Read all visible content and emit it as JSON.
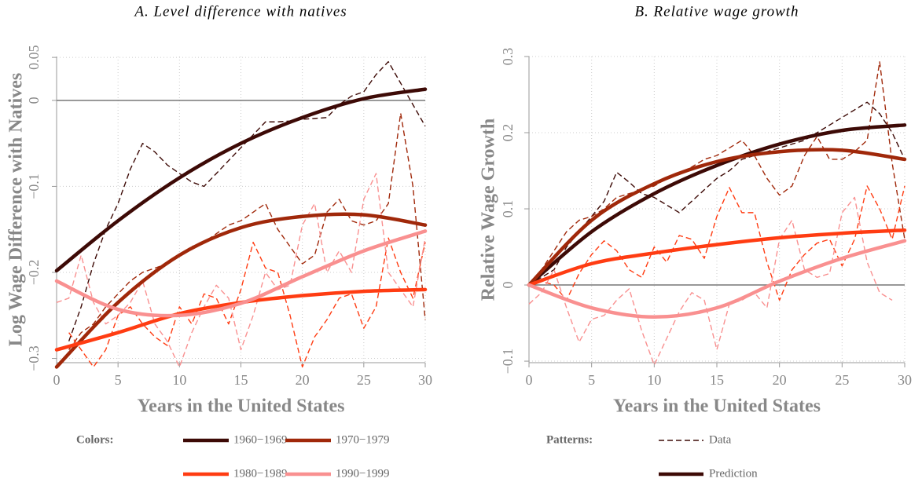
{
  "chart_data": [
    {
      "type": "line",
      "title": "A. Level difference with natives",
      "xlabel": "Years in the United States",
      "ylabel": "Log Wage Difference with Natives",
      "x": [
        0,
        1,
        2,
        3,
        4,
        5,
        6,
        7,
        8,
        9,
        10,
        11,
        12,
        13,
        14,
        15,
        16,
        17,
        18,
        19,
        20,
        21,
        22,
        23,
        24,
        25,
        26,
        27,
        28,
        29,
        30
      ],
      "xlim": [
        0,
        30
      ],
      "xticks": [
        0,
        5,
        10,
        15,
        20,
        25,
        30
      ],
      "ylim": [
        -0.305,
        0.051
      ],
      "yticks": [
        {
          "value": -0.3,
          "label": "−0.3"
        },
        {
          "value": -0.2,
          "label": "−0.2"
        },
        {
          "value": -0.1,
          "label": "−0.1"
        },
        0,
        0.05
      ],
      "grid": true,
      "hline": 0,
      "series": [
        {
          "name": "1960−1969",
          "pattern": "dashed",
          "color": "#3d0a06",
          "values": [
            null,
            -0.28,
            -0.24,
            -0.19,
            -0.15,
            -0.12,
            -0.08,
            -0.05,
            -0.06,
            -0.075,
            -0.085,
            -0.095,
            -0.1,
            -0.085,
            -0.07,
            -0.055,
            -0.04,
            -0.025,
            -0.025,
            -0.024,
            -0.022,
            -0.021,
            -0.02,
            -0.005,
            0.005,
            0.01,
            0.03,
            0.045,
            0.02,
            -0.005,
            -0.03
          ]
        },
        {
          "name": "1970−1979",
          "pattern": "dashed",
          "color": "#a0280a",
          "values": [
            null,
            -0.29,
            -0.27,
            -0.26,
            -0.24,
            -0.225,
            -0.21,
            -0.2,
            -0.195,
            -0.19,
            -0.18,
            -0.17,
            -0.165,
            -0.155,
            -0.145,
            -0.14,
            -0.13,
            -0.12,
            -0.15,
            -0.17,
            -0.19,
            -0.18,
            -0.13,
            -0.115,
            -0.14,
            -0.145,
            -0.14,
            -0.12,
            -0.015,
            -0.1,
            -0.255
          ]
        },
        {
          "name": "1980−1989",
          "pattern": "dashed",
          "color": "#ff3c12",
          "values": [
            null,
            -0.27,
            -0.29,
            -0.31,
            -0.29,
            -0.25,
            -0.24,
            -0.26,
            -0.275,
            -0.285,
            -0.24,
            -0.26,
            -0.225,
            -0.23,
            -0.26,
            -0.22,
            -0.165,
            -0.195,
            -0.2,
            -0.25,
            -0.31,
            -0.275,
            -0.255,
            -0.23,
            -0.225,
            -0.265,
            -0.24,
            -0.16,
            -0.2,
            -0.23,
            -0.165
          ]
        },
        {
          "name": "1990−1999",
          "pattern": "dashed",
          "color": "#f99090",
          "values": [
            -0.235,
            -0.23,
            -0.18,
            -0.235,
            -0.26,
            -0.25,
            -0.235,
            -0.21,
            -0.26,
            -0.28,
            -0.31,
            -0.27,
            -0.24,
            -0.215,
            -0.23,
            -0.29,
            -0.25,
            -0.2,
            -0.22,
            -0.215,
            -0.145,
            -0.12,
            -0.2,
            -0.175,
            -0.2,
            -0.115,
            -0.085,
            -0.2,
            -0.22,
            -0.24,
            -0.16
          ]
        },
        {
          "name": "1960−1969",
          "pattern": "solid",
          "color": "#3d0a06",
          "x": [
            0,
            5,
            10,
            15,
            20,
            25,
            30
          ],
          "values": [
            -0.198,
            -0.14,
            -0.09,
            -0.05,
            -0.02,
            0.002,
            0.013
          ]
        },
        {
          "name": "1970−1979",
          "pattern": "solid",
          "color": "#a0280a",
          "x": [
            0,
            5,
            10,
            15,
            20,
            25,
            30
          ],
          "values": [
            -0.31,
            -0.235,
            -0.18,
            -0.148,
            -0.135,
            -0.133,
            -0.145
          ]
        },
        {
          "name": "1980−1989",
          "pattern": "solid",
          "color": "#ff3c12",
          "x": [
            0,
            5,
            10,
            15,
            20,
            25,
            30
          ],
          "values": [
            -0.29,
            -0.27,
            -0.248,
            -0.235,
            -0.227,
            -0.222,
            -0.22
          ]
        },
        {
          "name": "1990−1999",
          "pattern": "solid",
          "color": "#f99090",
          "x": [
            0,
            5,
            10,
            15,
            20,
            25,
            30
          ],
          "values": [
            -0.21,
            -0.243,
            -0.25,
            -0.236,
            -0.205,
            -0.175,
            -0.152
          ]
        }
      ]
    },
    {
      "type": "line",
      "title": "B. Relative wage growth",
      "xlabel": "Years in the United States",
      "ylabel": "Relative Wage Growth",
      "x": [
        0,
        1,
        2,
        3,
        4,
        5,
        6,
        7,
        8,
        9,
        10,
        11,
        12,
        13,
        14,
        15,
        16,
        17,
        18,
        19,
        20,
        21,
        22,
        23,
        24,
        25,
        26,
        27,
        28,
        29,
        30
      ],
      "xlim": [
        0,
        30
      ],
      "xticks": [
        0,
        5,
        10,
        15,
        20,
        25,
        30
      ],
      "ylim": [
        -0.102,
        0.3
      ],
      "yticks": [
        {
          "value": -0.1,
          "label": "−0.1"
        },
        0,
        0.1,
        0.2,
        0.3
      ],
      "grid": true,
      "hline": 0,
      "series": [
        {
          "name": "1960−1969",
          "pattern": "dashed",
          "color": "#3d0a06",
          "values": [
            0,
            0.01,
            0.02,
            0.05,
            0.07,
            0.09,
            0.11,
            0.148,
            0.135,
            0.12,
            0.115,
            0.105,
            0.095,
            0.11,
            0.125,
            0.14,
            0.15,
            0.165,
            0.17,
            0.175,
            0.18,
            0.185,
            0.19,
            0.2,
            0.21,
            0.22,
            0.23,
            0.24,
            0.225,
            0.2,
            0.165
          ]
        },
        {
          "name": "1970−1979",
          "pattern": "dashed",
          "color": "#a0280a",
          "values": [
            0,
            0.02,
            0.045,
            0.07,
            0.085,
            0.09,
            0.1,
            0.115,
            0.12,
            0.125,
            0.13,
            0.14,
            0.145,
            0.155,
            0.165,
            0.17,
            0.18,
            0.19,
            0.17,
            0.14,
            0.118,
            0.13,
            0.17,
            0.195,
            0.165,
            0.165,
            0.175,
            0.19,
            0.293,
            0.16,
            0.06
          ]
        },
        {
          "name": "1980−1989",
          "pattern": "dashed",
          "color": "#ff3c12",
          "values": [
            0,
            0.005,
            0,
            -0.02,
            0.015,
            0.04,
            0.058,
            0.045,
            0.02,
            0.01,
            0.05,
            0.03,
            0.065,
            0.06,
            0.035,
            0.09,
            0.128,
            0.095,
            0.095,
            0.03,
            -0.02,
            0.02,
            0.04,
            0.055,
            0.06,
            0.025,
            0.06,
            0.13,
            0.1,
            0.06,
            0.13
          ]
        },
        {
          "name": "1990−1999",
          "pattern": "dashed",
          "color": "#f99090",
          "values": [
            -0.025,
            -0.01,
            0.02,
            -0.03,
            -0.075,
            -0.045,
            -0.04,
            -0.02,
            -0.005,
            -0.06,
            -0.105,
            -0.07,
            -0.035,
            -0.01,
            -0.02,
            -0.085,
            -0.025,
            -0.02,
            -0.01,
            -0.03,
            0.06,
            0.085,
            0.02,
            0.01,
            0.015,
            0.095,
            0.115,
            0.03,
            -0.01,
            -0.02,
            null
          ]
        },
        {
          "name": "1960−1969",
          "pattern": "solid",
          "color": "#3d0a06",
          "x": [
            0,
            5,
            10,
            15,
            20,
            25,
            30
          ],
          "values": [
            0,
            0.07,
            0.12,
            0.157,
            0.185,
            0.203,
            0.21
          ]
        },
        {
          "name": "1970−1979",
          "pattern": "solid",
          "color": "#a0280a",
          "x": [
            0,
            5,
            10,
            15,
            20,
            25,
            30
          ],
          "values": [
            0,
            0.085,
            0.133,
            0.162,
            0.175,
            0.177,
            0.165
          ]
        },
        {
          "name": "1980−1989",
          "pattern": "solid",
          "color": "#ff3c12",
          "x": [
            0,
            5,
            10,
            15,
            20,
            25,
            30
          ],
          "values": [
            0,
            0.028,
            0.042,
            0.053,
            0.062,
            0.068,
            0.072
          ]
        },
        {
          "name": "1990−1999",
          "pattern": "solid",
          "color": "#f99090",
          "x": [
            0,
            5,
            10,
            15,
            20,
            25,
            30
          ],
          "values": [
            0,
            -0.03,
            -0.042,
            -0.03,
            0.005,
            0.035,
            0.058
          ]
        }
      ]
    }
  ],
  "legend": {
    "colors_label": "Colors:",
    "colors": [
      {
        "name": "1960−1969",
        "color": "#3d0a06"
      },
      {
        "name": "1970−1979",
        "color": "#a0280a"
      },
      {
        "name": "1980−1989",
        "color": "#ff3c12"
      },
      {
        "name": "1990−1999",
        "color": "#f99090"
      }
    ],
    "patterns_label": "Patterns:",
    "patterns": [
      {
        "name": "Data",
        "pattern": "dashed"
      },
      {
        "name": "Prediction",
        "pattern": "solid"
      }
    ]
  }
}
